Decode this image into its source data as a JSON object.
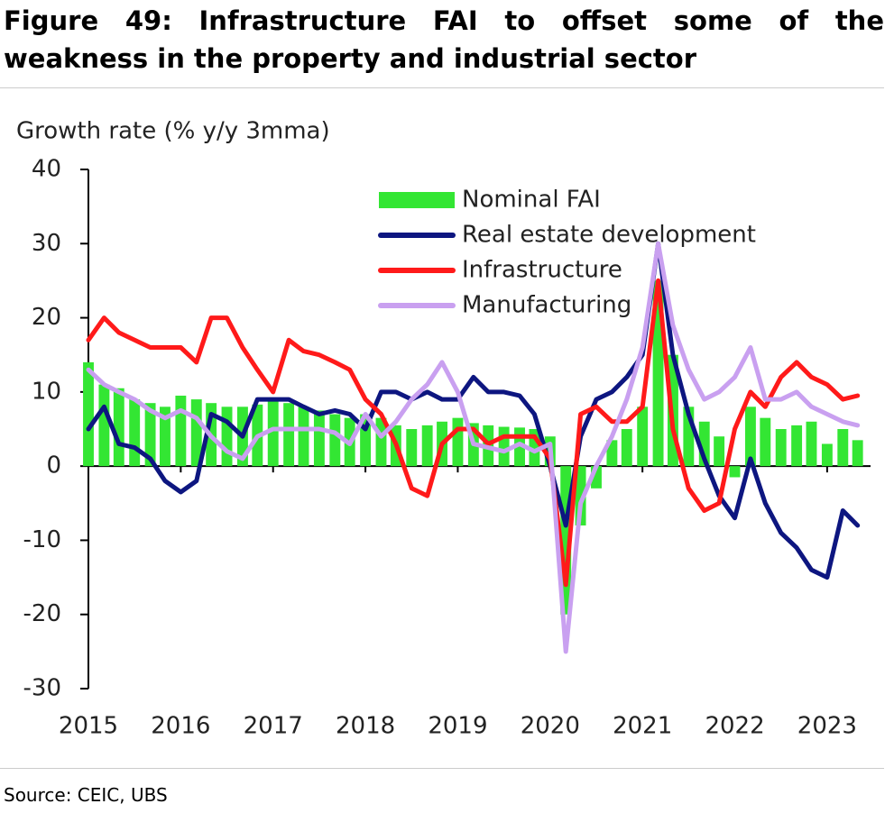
{
  "title": "Figure 49: Infrastructure FAI to offset some of the weakness in the property and industrial sector",
  "source": "Source: CEIC, UBS",
  "chart_data": {
    "type": "line",
    "ylabel": "Growth rate (% y/y 3mma)",
    "x": [
      2015,
      2015.17,
      2015.33,
      2015.5,
      2015.67,
      2015.83,
      2016,
      2016.17,
      2016.33,
      2016.5,
      2016.67,
      2016.83,
      2017,
      2017.17,
      2017.33,
      2017.5,
      2017.67,
      2017.83,
      2018,
      2018.17,
      2018.33,
      2018.5,
      2018.67,
      2018.83,
      2019,
      2019.17,
      2019.33,
      2019.5,
      2019.67,
      2019.83,
      2020,
      2020.17,
      2020.33,
      2020.5,
      2020.67,
      2020.83,
      2021,
      2021.17,
      2021.33,
      2021.5,
      2021.67,
      2021.83,
      2022,
      2022.17,
      2022.33,
      2022.5,
      2022.67,
      2022.83,
      2023,
      2023.17,
      2023.33
    ],
    "xlim": [
      2015,
      2023.47
    ],
    "xticks": [
      2015,
      2016,
      2017,
      2018,
      2019,
      2020,
      2021,
      2022,
      2023
    ],
    "ylim": [
      -30,
      40
    ],
    "yticks": [
      -30,
      -20,
      -10,
      0,
      10,
      20,
      30,
      40
    ],
    "grid": false,
    "series": [
      {
        "name": "Nominal FAI",
        "type": "bar",
        "color": "#33e633",
        "values": [
          14,
          11,
          10.5,
          9,
          8.5,
          8,
          9.5,
          9,
          8.5,
          8,
          8,
          8.3,
          9,
          8.5,
          8,
          7.5,
          7,
          6.5,
          7,
          6.5,
          5.5,
          5,
          5.5,
          6,
          6.5,
          5.8,
          5.5,
          5.3,
          5.2,
          5,
          4,
          -20,
          -8,
          -3,
          3.5,
          5,
          8,
          25,
          15,
          8,
          6,
          4,
          -1.5,
          8,
          6.5,
          5,
          5.5,
          6,
          3,
          5,
          3.5
        ]
      },
      {
        "name": "Real estate development",
        "type": "line",
        "color": "#0d1680",
        "values": [
          5,
          8,
          3,
          2.5,
          1,
          -2,
          -3.5,
          -2,
          7,
          6,
          4,
          9,
          9,
          9,
          8,
          7,
          7.5,
          7,
          5,
          10,
          10,
          9,
          10,
          9,
          9,
          12,
          10,
          10,
          9.5,
          7,
          0,
          -8,
          4,
          9,
          10,
          12,
          15,
          30,
          15,
          7,
          1,
          -4,
          -7,
          1,
          -5,
          -9,
          -11,
          -14,
          -15,
          -6,
          -8
        ]
      },
      {
        "name": "Infrastructure",
        "type": "line",
        "color": "#ff1a1a",
        "values": [
          17,
          20,
          18,
          17,
          16,
          16,
          16,
          14,
          20,
          20,
          16,
          13,
          10,
          17,
          15.5,
          15,
          14,
          13,
          9,
          7,
          3,
          -3,
          -4,
          3,
          5,
          5,
          3,
          4,
          4,
          4,
          1,
          -16,
          7,
          8,
          6,
          6,
          8,
          25,
          5,
          -3,
          -6,
          -5,
          5,
          10,
          8,
          12,
          14,
          12,
          11,
          9,
          9.5
        ]
      },
      {
        "name": "Manufacturing",
        "type": "line",
        "color": "#c9a0f0",
        "values": [
          13,
          11,
          10,
          9,
          7.5,
          6.5,
          7.5,
          6.5,
          4,
          2,
          1,
          4,
          5,
          5,
          5,
          5,
          4.5,
          3,
          7,
          4,
          6,
          9,
          11,
          14,
          10,
          3,
          2.5,
          2,
          3,
          2,
          3,
          -25,
          -5,
          0,
          4,
          9,
          16,
          30,
          19,
          13,
          9,
          10,
          12,
          16,
          9,
          9,
          10,
          8,
          7,
          6,
          5.5
        ]
      }
    ]
  }
}
